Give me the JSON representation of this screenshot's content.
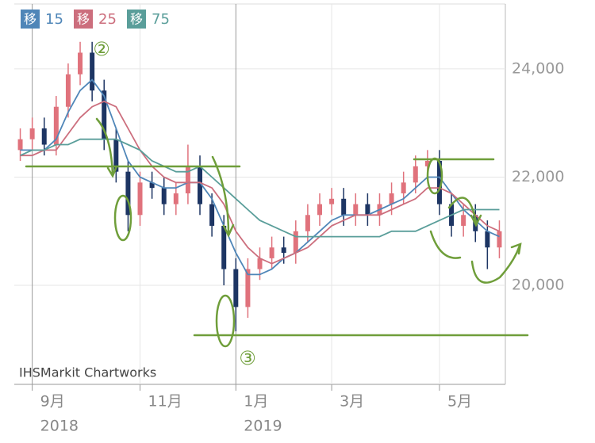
{
  "chart_data": {
    "type": "candlestick",
    "categories": [
      null,
      "9月",
      null,
      null,
      null,
      null,
      null,
      null,
      null,
      null,
      "11月",
      null,
      null,
      null,
      null,
      null,
      null,
      null,
      "1月",
      null,
      null,
      null,
      null,
      null,
      null,
      null,
      "3月",
      null,
      null,
      null,
      null,
      null,
      null,
      null,
      null,
      "5月",
      null,
      null,
      null,
      null,
      null
    ],
    "year_labels": [
      null,
      "2018",
      null,
      null,
      null,
      null,
      null,
      null,
      null,
      null,
      null,
      null,
      null,
      null,
      null,
      null,
      null,
      null,
      "2019",
      null,
      null,
      null,
      null,
      null,
      null,
      null,
      null,
      null,
      null,
      null,
      null,
      null,
      null,
      null,
      null,
      null,
      null,
      null,
      null,
      null,
      null
    ],
    "candles": {
      "open": [
        22500,
        22700,
        22900,
        22600,
        23300,
        23900,
        24300,
        23600,
        22700,
        22100,
        21300,
        21900,
        21800,
        21500,
        21700,
        22200,
        21500,
        21100,
        20300,
        19600,
        20300,
        20500,
        20700,
        20600,
        21000,
        21300,
        21500,
        21600,
        21300,
        21500,
        21300,
        21500,
        21700,
        21900,
        22200,
        22300,
        21500,
        21100,
        21300,
        21000,
        20700
      ],
      "high": [
        22900,
        23100,
        23100,
        23500,
        24100,
        24500,
        24500,
        23800,
        22900,
        22300,
        22100,
        22100,
        22000,
        21900,
        22600,
        22400,
        21700,
        21300,
        20500,
        20500,
        20700,
        20900,
        20900,
        21200,
        21500,
        21700,
        21800,
        21800,
        21700,
        21700,
        21700,
        21900,
        22100,
        22400,
        22500,
        22500,
        21700,
        21500,
        21500,
        21200,
        21200
      ],
      "low": [
        22300,
        22500,
        22400,
        22400,
        23100,
        23700,
        23400,
        22500,
        21900,
        21000,
        21100,
        21600,
        21300,
        21300,
        21500,
        21300,
        20900,
        20000,
        19150,
        19400,
        20100,
        20300,
        20400,
        20400,
        20800,
        21100,
        21300,
        21100,
        21100,
        21100,
        21100,
        21300,
        21500,
        21700,
        22000,
        21300,
        20900,
        20900,
        20800,
        20300,
        20500
      ],
      "close": [
        22700,
        22900,
        22600,
        23300,
        23900,
        24300,
        23600,
        22700,
        22100,
        21300,
        21900,
        21800,
        21500,
        21700,
        22200,
        21500,
        21100,
        20300,
        19600,
        20300,
        20500,
        20700,
        20600,
        21000,
        21300,
        21500,
        21600,
        21300,
        21500,
        21300,
        21500,
        21700,
        21900,
        22200,
        22300,
        21500,
        21100,
        21300,
        21000,
        20700,
        21000
      ],
      "up_color": "#e0727c",
      "down_color": "#1d3563"
    },
    "series": [
      {
        "name": "移",
        "period": 15,
        "color": "#4f86b8",
        "values": [
          22500,
          22500,
          22500,
          22700,
          23200,
          23600,
          23800,
          23500,
          22900,
          22300,
          22000,
          21900,
          21800,
          21800,
          21900,
          21900,
          21600,
          21100,
          20600,
          20200,
          20200,
          20300,
          20500,
          20600,
          20800,
          21000,
          21200,
          21300,
          21300,
          21300,
          21400,
          21500,
          21600,
          21800,
          22000,
          22000,
          21700,
          21400,
          21200,
          21000,
          20900
        ]
      },
      {
        "name": "移",
        "period": 25,
        "color": "#cc6e7d",
        "values": [
          22400,
          22400,
          22500,
          22500,
          22800,
          23100,
          23300,
          23400,
          23300,
          22900,
          22500,
          22200,
          22000,
          21900,
          21900,
          21900,
          21800,
          21500,
          21000,
          20700,
          20500,
          20400,
          20500,
          20600,
          20700,
          20900,
          21100,
          21200,
          21300,
          21300,
          21300,
          21400,
          21500,
          21600,
          21800,
          21800,
          21700,
          21500,
          21300,
          21100,
          21000
        ]
      },
      {
        "name": "移",
        "period": 75,
        "color": "#5a9e9a",
        "values": [
          22400,
          22500,
          22500,
          22600,
          22600,
          22700,
          22700,
          22700,
          22700,
          22600,
          22500,
          22300,
          22200,
          22100,
          22100,
          22200,
          22000,
          21800,
          21600,
          21400,
          21200,
          21100,
          21000,
          20900,
          20900,
          20900,
          20900,
          20900,
          20900,
          20900,
          20900,
          21000,
          21000,
          21000,
          21100,
          21200,
          21300,
          21400,
          21400,
          21400,
          21400
        ]
      }
    ],
    "ylim": [
      18170,
      25200
    ],
    "yticks": [
      {
        "value": 20000,
        "label": "20,000"
      },
      {
        "value": 22000,
        "label": "22,000"
      },
      {
        "value": 24000,
        "label": "24,000"
      }
    ],
    "grid": true,
    "annotations": [
      "②",
      "③"
    ],
    "watermark": "IHSMarkit Chartworks"
  }
}
